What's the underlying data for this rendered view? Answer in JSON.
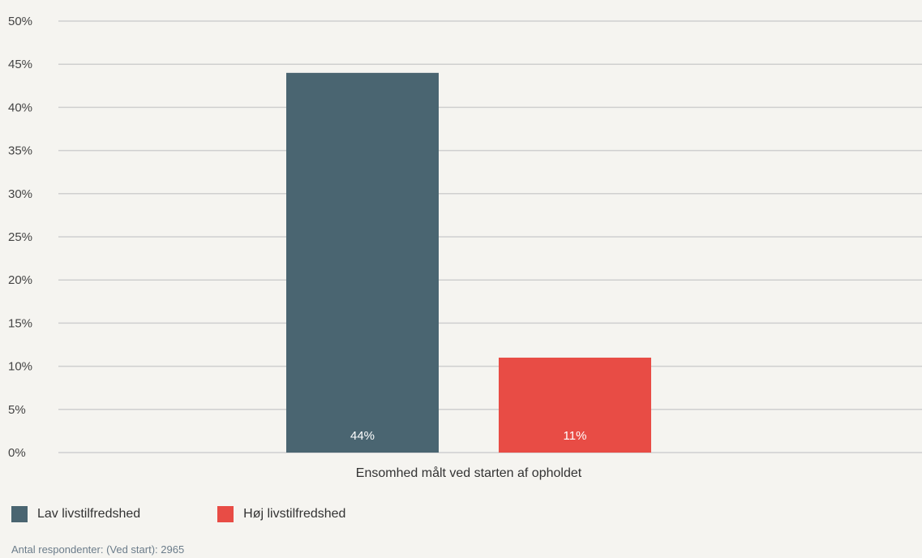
{
  "chart_data": {
    "type": "bar",
    "categories": [
      "Ensomhed målt ved starten af opholdet"
    ],
    "series": [
      {
        "name": "Lav livstilfredshed",
        "values": [
          44
        ],
        "label": "44%",
        "color": "#4a6571"
      },
      {
        "name": "Høj livstilfredshed",
        "values": [
          11
        ],
        "label": "11%",
        "color": "#e84c45"
      }
    ],
    "ylim": [
      0,
      50
    ],
    "yticks": [
      0,
      5,
      10,
      15,
      20,
      25,
      30,
      35,
      40,
      45,
      50
    ],
    "ytick_labels": [
      "0%",
      "5%",
      "10%",
      "15%",
      "20%",
      "25%",
      "30%",
      "35%",
      "40%",
      "45%",
      "50%"
    ],
    "grid": true,
    "legend_position": "bottom-left"
  },
  "footnote": "Antal respondenter: (Ved start): 2965",
  "colors": {
    "grid": "#cfcfcf",
    "background": "#f5f4f0"
  }
}
